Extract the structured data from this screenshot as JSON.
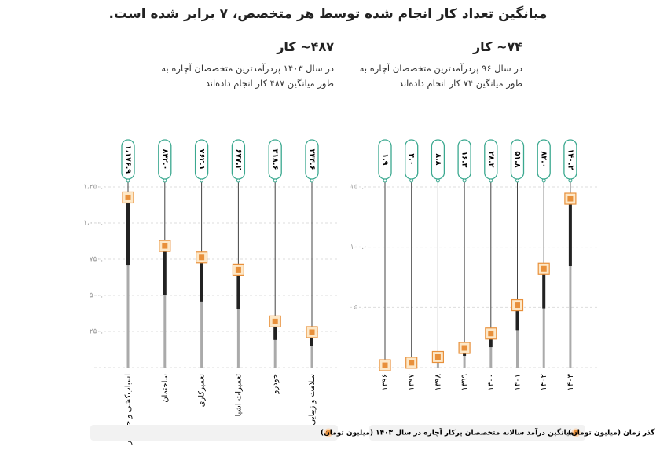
{
  "title": "میانگین تعداد کار انجام شده توسط هر متخصص، ۷ برابر شده است.",
  "chart_data": [
    {
      "type": "dot",
      "heading": "۷۴~ کار",
      "subtitle": "در سال ۹۶ پردرآمدترین متخصصان آچاره به طور میانگین ۷۴ کار انجام داده‌اند",
      "categories": [
        "۱۳۹۶",
        "۱۳۹۷",
        "۱۳۹۸",
        "۱۳۹۹",
        "۱۴۰۰",
        "۱۴۰۱",
        "۱۴۰۲",
        "۱۴۰۳"
      ],
      "series": [
        {
          "name": "میانگین درآمد سالانه متخصصان آچاره در گذر زمان (میلیون تومان)",
          "color": "#e8903b",
          "values": [
            1.9,
            4.0,
            8.8,
            16.3,
            28.2,
            51.8,
            82.0,
            140.2
          ],
          "value_labels": [
            "۱.۹",
            "۴.۰",
            "۸.۸",
            "۱۶.۳",
            "۲۸.۲",
            "۵۱.۸",
            "۸۲.۰",
            "۱۴۰.۲"
          ]
        }
      ],
      "label_color": "#3aa88f",
      "ylim": [
        0,
        150
      ],
      "yticks": [
        {
          "value": 0,
          "label": "۰"
        },
        {
          "value": 50,
          "label": "۵۰.۰"
        },
        {
          "value": 100,
          "label": "۱۰۰.۰"
        },
        {
          "value": 150,
          "label": "۱۵۰.۰"
        }
      ],
      "grid": true
    },
    {
      "type": "dot",
      "heading": "۴۸۷~ کار",
      "subtitle": "در سال ۱۴۰۳ پردرآمدترین متخصصان آچاره به طور میانگین ۴۸۷ کار انجام داده‌اند",
      "categories": [
        "اسباب‌کشی و حمل‌بار",
        "ساختمان",
        "تعمیرکاری",
        "تعمیرات اشیا",
        "خودرو",
        "سلامت و زیبایی"
      ],
      "series": [
        {
          "name": "میانگین درآمد سالانه متخصصان پرکار آچاره در سال ۱۴۰۳ (میلیون تومان)",
          "color": "#e8903b",
          "values": [
            1176.9,
            842.0,
            762.1,
            677.2,
            318.6,
            244.6
          ],
          "value_labels": [
            "۱،۱۷۶.۹",
            "۸۴۲.۰",
            "۷۶۲.۱",
            "۶۷۷.۲",
            "۳۱۸.۶",
            "۲۴۴.۶"
          ]
        }
      ],
      "label_color": "#3aa88f",
      "ylim": [
        0,
        1250
      ],
      "yticks": [
        {
          "value": 0,
          "label": "۰"
        },
        {
          "value": 250,
          "label": "۲۵۰.۰"
        },
        {
          "value": 500,
          "label": "۵۰۰.۰"
        },
        {
          "value": 750,
          "label": "۷۵۰.۰"
        },
        {
          "value": 1000,
          "label": "۱،۰۰۰.۰"
        },
        {
          "value": 1250,
          "label": "۱،۲۵۰.۰"
        }
      ],
      "grid": true
    }
  ]
}
